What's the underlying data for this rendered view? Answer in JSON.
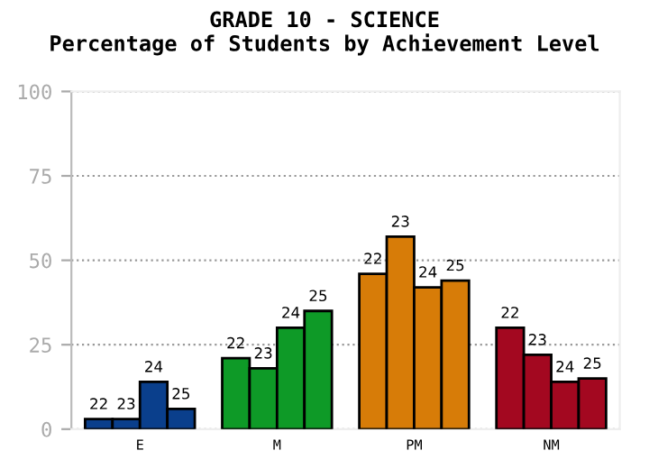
{
  "chart_data": {
    "type": "bar",
    "title": "GRADE 10 - SCIENCE",
    "subtitle": "Percentage of Students by Achievement Level",
    "categories": [
      "E",
      "M",
      "PM",
      "NM"
    ],
    "series": [
      {
        "name": "22",
        "colors": [
          "#0a3f8c",
          "#0e9a27",
          "#d77c08",
          "#a30820"
        ],
        "values": [
          3,
          21,
          46,
          30
        ]
      },
      {
        "name": "23",
        "colors": [
          "#0a3f8c",
          "#0e9a27",
          "#d77c08",
          "#a30820"
        ],
        "values": [
          3,
          18,
          57,
          22
        ]
      },
      {
        "name": "24",
        "colors": [
          "#0a3f8c",
          "#0e9a27",
          "#d77c08",
          "#a30820"
        ],
        "values": [
          14,
          30,
          42,
          14
        ]
      },
      {
        "name": "25",
        "colors": [
          "#0a3f8c",
          "#0e9a27",
          "#d77c08",
          "#a30820"
        ],
        "values": [
          6,
          35,
          44,
          15
        ]
      }
    ],
    "ylim": [
      0,
      100
    ],
    "yticks": [
      0,
      25,
      50,
      75,
      100
    ],
    "grid": "y",
    "legend": false
  }
}
